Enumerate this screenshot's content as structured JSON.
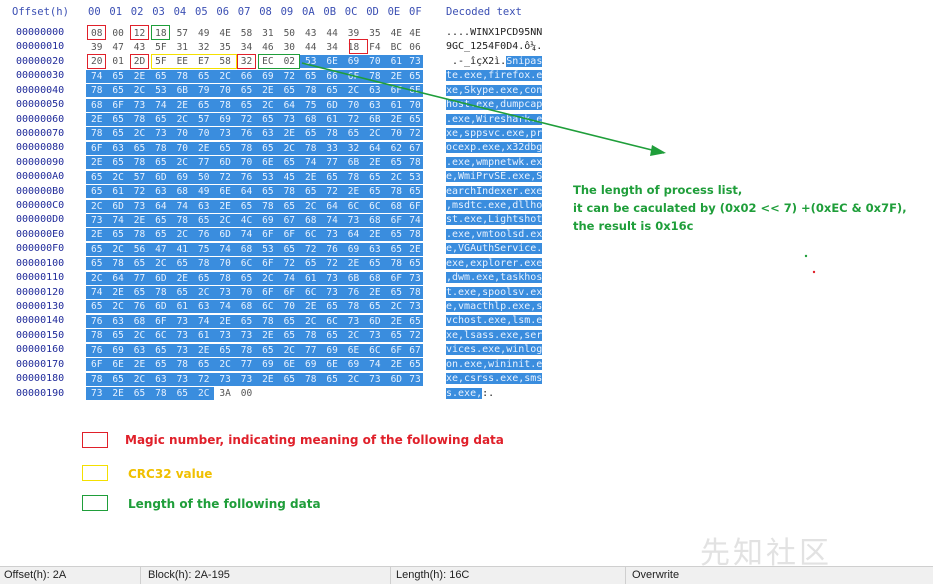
{
  "header": {
    "offset_label": "Offset(h)",
    "columns": [
      "00",
      "01",
      "02",
      "03",
      "04",
      "05",
      "06",
      "07",
      "08",
      "09",
      "0A",
      "0B",
      "0C",
      "0D",
      "0E",
      "0F"
    ],
    "decoded_label": "Decoded text"
  },
  "rows": [
    {
      "offset": "00000000",
      "bytes": [
        "08",
        "00",
        "12",
        "18",
        "57",
        "49",
        "4E",
        "58",
        "31",
        "50",
        "43",
        "44",
        "39",
        "35",
        "4E",
        "4E"
      ],
      "text": "....WINX1PCD95NN"
    },
    {
      "offset": "00000010",
      "bytes": [
        "39",
        "47",
        "43",
        "5F",
        "31",
        "32",
        "35",
        "34",
        "46",
        "30",
        "44",
        "34",
        "18",
        "F4",
        "BC",
        "06"
      ],
      "text": "9GC_1254F0D4.ô¼."
    },
    {
      "offset": "00000020",
      "bytes": [
        "20",
        "01",
        "2D",
        "5F",
        "EE",
        "E7",
        "58",
        "32",
        "EC",
        "02",
        "53",
        "6E",
        "69",
        "70",
        "61",
        "73"
      ],
      "text": " .-_îçX2ì.Snipas"
    },
    {
      "offset": "00000030",
      "bytes": [
        "74",
        "65",
        "2E",
        "65",
        "78",
        "65",
        "2C",
        "66",
        "69",
        "72",
        "65",
        "66",
        "6F",
        "78",
        "2E",
        "65"
      ],
      "text": "te.exe,firefox.e"
    },
    {
      "offset": "00000040",
      "bytes": [
        "78",
        "65",
        "2C",
        "53",
        "6B",
        "79",
        "70",
        "65",
        "2E",
        "65",
        "78",
        "65",
        "2C",
        "63",
        "6F",
        "6E"
      ],
      "text": "xe,Skype.exe,con"
    },
    {
      "offset": "00000050",
      "bytes": [
        "68",
        "6F",
        "73",
        "74",
        "2E",
        "65",
        "78",
        "65",
        "2C",
        "64",
        "75",
        "6D",
        "70",
        "63",
        "61",
        "70"
      ],
      "text": "host.exe,dumpcap"
    },
    {
      "offset": "00000060",
      "bytes": [
        "2E",
        "65",
        "78",
        "65",
        "2C",
        "57",
        "69",
        "72",
        "65",
        "73",
        "68",
        "61",
        "72",
        "6B",
        "2E",
        "65"
      ],
      "text": ".exe,Wireshark.e"
    },
    {
      "offset": "00000070",
      "bytes": [
        "78",
        "65",
        "2C",
        "73",
        "70",
        "70",
        "73",
        "76",
        "63",
        "2E",
        "65",
        "78",
        "65",
        "2C",
        "70",
        "72"
      ],
      "text": "xe,sppsvc.exe,pr"
    },
    {
      "offset": "00000080",
      "bytes": [
        "6F",
        "63",
        "65",
        "78",
        "70",
        "2E",
        "65",
        "78",
        "65",
        "2C",
        "78",
        "33",
        "32",
        "64",
        "62",
        "67"
      ],
      "text": "ocexp.exe,x32dbg"
    },
    {
      "offset": "00000090",
      "bytes": [
        "2E",
        "65",
        "78",
        "65",
        "2C",
        "77",
        "6D",
        "70",
        "6E",
        "65",
        "74",
        "77",
        "6B",
        "2E",
        "65",
        "78"
      ],
      "text": ".exe,wmpnetwk.ex"
    },
    {
      "offset": "000000A0",
      "bytes": [
        "65",
        "2C",
        "57",
        "6D",
        "69",
        "50",
        "72",
        "76",
        "53",
        "45",
        "2E",
        "65",
        "78",
        "65",
        "2C",
        "53"
      ],
      "text": "e,WmiPrvSE.exe,S"
    },
    {
      "offset": "000000B0",
      "bytes": [
        "65",
        "61",
        "72",
        "63",
        "68",
        "49",
        "6E",
        "64",
        "65",
        "78",
        "65",
        "72",
        "2E",
        "65",
        "78",
        "65"
      ],
      "text": "earchIndexer.exe"
    },
    {
      "offset": "000000C0",
      "bytes": [
        "2C",
        "6D",
        "73",
        "64",
        "74",
        "63",
        "2E",
        "65",
        "78",
        "65",
        "2C",
        "64",
        "6C",
        "6C",
        "68",
        "6F"
      ],
      "text": ",msdtc.exe,dllho"
    },
    {
      "offset": "000000D0",
      "bytes": [
        "73",
        "74",
        "2E",
        "65",
        "78",
        "65",
        "2C",
        "4C",
        "69",
        "67",
        "68",
        "74",
        "73",
        "68",
        "6F",
        "74"
      ],
      "text": "st.exe,Lightshot"
    },
    {
      "offset": "000000E0",
      "bytes": [
        "2E",
        "65",
        "78",
        "65",
        "2C",
        "76",
        "6D",
        "74",
        "6F",
        "6F",
        "6C",
        "73",
        "64",
        "2E",
        "65",
        "78"
      ],
      "text": ".exe,vmtoolsd.ex"
    },
    {
      "offset": "000000F0",
      "bytes": [
        "65",
        "2C",
        "56",
        "47",
        "41",
        "75",
        "74",
        "68",
        "53",
        "65",
        "72",
        "76",
        "69",
        "63",
        "65",
        "2E"
      ],
      "text": "e,VGAuthService."
    },
    {
      "offset": "00000100",
      "bytes": [
        "65",
        "78",
        "65",
        "2C",
        "65",
        "78",
        "70",
        "6C",
        "6F",
        "72",
        "65",
        "72",
        "2E",
        "65",
        "78",
        "65"
      ],
      "text": "exe,explorer.exe"
    },
    {
      "offset": "00000110",
      "bytes": [
        "2C",
        "64",
        "77",
        "6D",
        "2E",
        "65",
        "78",
        "65",
        "2C",
        "74",
        "61",
        "73",
        "6B",
        "68",
        "6F",
        "73"
      ],
      "text": ",dwm.exe,taskhos"
    },
    {
      "offset": "00000120",
      "bytes": [
        "74",
        "2E",
        "65",
        "78",
        "65",
        "2C",
        "73",
        "70",
        "6F",
        "6F",
        "6C",
        "73",
        "76",
        "2E",
        "65",
        "78"
      ],
      "text": "t.exe,spoolsv.ex"
    },
    {
      "offset": "00000130",
      "bytes": [
        "65",
        "2C",
        "76",
        "6D",
        "61",
        "63",
        "74",
        "68",
        "6C",
        "70",
        "2E",
        "65",
        "78",
        "65",
        "2C",
        "73"
      ],
      "text": "e,vmacthlp.exe,s"
    },
    {
      "offset": "00000140",
      "bytes": [
        "76",
        "63",
        "68",
        "6F",
        "73",
        "74",
        "2E",
        "65",
        "78",
        "65",
        "2C",
        "6C",
        "73",
        "6D",
        "2E",
        "65"
      ],
      "text": "vchost.exe,lsm.e"
    },
    {
      "offset": "00000150",
      "bytes": [
        "78",
        "65",
        "2C",
        "6C",
        "73",
        "61",
        "73",
        "73",
        "2E",
        "65",
        "78",
        "65",
        "2C",
        "73",
        "65",
        "72"
      ],
      "text": "xe,lsass.exe,ser"
    },
    {
      "offset": "00000160",
      "bytes": [
        "76",
        "69",
        "63",
        "65",
        "73",
        "2E",
        "65",
        "78",
        "65",
        "2C",
        "77",
        "69",
        "6E",
        "6C",
        "6F",
        "67"
      ],
      "text": "vices.exe,winlog"
    },
    {
      "offset": "00000170",
      "bytes": [
        "6F",
        "6E",
        "2E",
        "65",
        "78",
        "65",
        "2C",
        "77",
        "69",
        "6E",
        "69",
        "6E",
        "69",
        "74",
        "2E",
        "65"
      ],
      "text": "on.exe,wininit.e"
    },
    {
      "offset": "00000180",
      "bytes": [
        "78",
        "65",
        "2C",
        "63",
        "73",
        "72",
        "73",
        "73",
        "2E",
        "65",
        "78",
        "65",
        "2C",
        "73",
        "6D",
        "73"
      ],
      "text": "xe,csrss.exe,sms"
    },
    {
      "offset": "00000190",
      "bytes": [
        "73",
        "2E",
        "65",
        "78",
        "65",
        "2C",
        "3A",
        "00"
      ],
      "text": "s.exe,:."
    }
  ],
  "annotation": {
    "line1": "The length of process list,",
    "line2": "it can be caculated by (0x02 << 7) +(0xEC & 0x7F),",
    "line3": "the result is 0x16c"
  },
  "legend": [
    {
      "color": "#e0202a",
      "label": "Magic number, indicating meaning of the following data"
    },
    {
      "color": "#f4e000",
      "label": "CRC32 value"
    },
    {
      "color": "#1f9e3a",
      "label": "Length of the following data"
    }
  ],
  "status_bar": {
    "offset": "Offset(h): 2A",
    "block": "Block(h): 2A-195",
    "length": "Length(h): 16C",
    "mode": "Overwrite"
  },
  "watermark": "先知社区",
  "colors": {
    "selection": "#3a8dde",
    "magic": "#e0202a",
    "crc": "#f4e000",
    "length": "#1f9e3a"
  }
}
